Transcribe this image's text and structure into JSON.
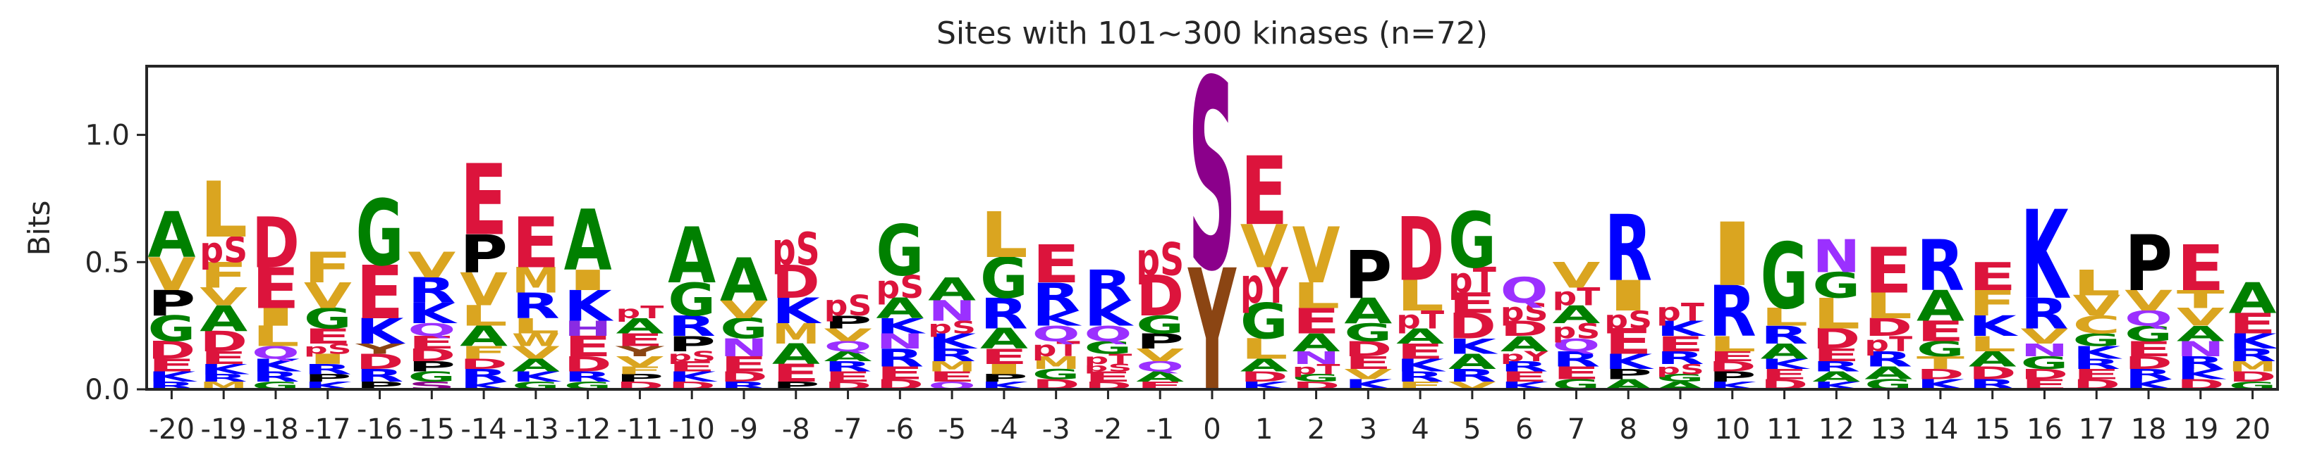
{
  "chart_data": {
    "type": "logo",
    "title": "Sites with 101~300 kinases (n=72)",
    "ylabel": "Bits",
    "categories": [
      -20,
      -19,
      -18,
      -17,
      -16,
      -15,
      -14,
      -13,
      -12,
      -11,
      -10,
      -9,
      -8,
      -7,
      -6,
      -5,
      -4,
      -3,
      -2,
      -1,
      0,
      1,
      2,
      3,
      4,
      5,
      6,
      7,
      8,
      9,
      10,
      11,
      12,
      13,
      14,
      15,
      16,
      17,
      18,
      19,
      20
    ],
    "stacks": [
      {
        "letters": [
          "A",
          "V",
          "P",
          "G",
          "D",
          "E",
          "K",
          "R"
        ],
        "values": [
          0.18,
          0.13,
          0.1,
          0.1,
          0.07,
          0.05,
          0.04,
          0.03
        ]
      },
      {
        "letters": [
          "L",
          "pS",
          "F",
          "V",
          "A",
          "D",
          "E",
          "K",
          "R",
          "M"
        ],
        "values": [
          0.22,
          0.1,
          0.1,
          0.07,
          0.1,
          0.08,
          0.05,
          0.04,
          0.03,
          0.03
        ]
      },
      {
        "letters": [
          "D",
          "E",
          "I",
          "L",
          "Q",
          "K",
          "R",
          "G"
        ],
        "values": [
          0.2,
          0.16,
          0.07,
          0.08,
          0.05,
          0.05,
          0.04,
          0.03
        ]
      },
      {
        "letters": [
          "F",
          "V",
          "G",
          "E",
          "pS",
          "I",
          "R",
          "P",
          "K"
        ],
        "values": [
          0.12,
          0.1,
          0.08,
          0.06,
          0.04,
          0.04,
          0.04,
          0.03,
          0.03
        ]
      },
      {
        "letters": [
          "G",
          "E",
          "K",
          "Y",
          "D",
          "R",
          "P"
        ],
        "values": [
          0.26,
          0.21,
          0.1,
          0.04,
          0.06,
          0.05,
          0.03
        ]
      },
      {
        "letters": [
          "V",
          "R",
          "K",
          "Q",
          "E",
          "D",
          "P",
          "G",
          "S"
        ],
        "values": [
          0.1,
          0.1,
          0.08,
          0.05,
          0.05,
          0.05,
          0.04,
          0.04,
          0.03
        ]
      },
      {
        "letters": [
          "E",
          "P",
          "V",
          "L",
          "A",
          "F",
          "D",
          "R",
          "K"
        ],
        "values": [
          0.28,
          0.15,
          0.13,
          0.08,
          0.08,
          0.05,
          0.04,
          0.05,
          0.03
        ]
      },
      {
        "letters": [
          "E",
          "M",
          "R",
          "L",
          "W",
          "V",
          "A",
          "K",
          "G"
        ],
        "values": [
          0.2,
          0.1,
          0.1,
          0.06,
          0.05,
          0.05,
          0.05,
          0.04,
          0.03
        ]
      },
      {
        "letters": [
          "A",
          "I",
          "K",
          "H",
          "E",
          "D",
          "R",
          "G"
        ],
        "values": [
          0.24,
          0.08,
          0.12,
          0.06,
          0.08,
          0.06,
          0.04,
          0.03
        ]
      },
      {
        "letters": [
          "pT",
          "A",
          "E",
          "Y",
          "V",
          "F",
          "P",
          "D"
        ],
        "values": [
          0.05,
          0.06,
          0.05,
          0.04,
          0.04,
          0.03,
          0.03,
          0.03
        ]
      },
      {
        "letters": [
          "A",
          "G",
          "R",
          "P",
          "pS",
          "E",
          "K",
          "D"
        ],
        "values": [
          0.22,
          0.13,
          0.08,
          0.06,
          0.04,
          0.04,
          0.04,
          0.03
        ]
      },
      {
        "letters": [
          "A",
          "V",
          "G",
          "N",
          "E",
          "D",
          "R"
        ],
        "values": [
          0.17,
          0.07,
          0.08,
          0.07,
          0.06,
          0.04,
          0.03
        ]
      },
      {
        "letters": [
          "pS",
          "D",
          "K",
          "M",
          "A",
          "E",
          "P"
        ],
        "values": [
          0.13,
          0.13,
          0.1,
          0.08,
          0.08,
          0.07,
          0.03
        ]
      },
      {
        "letters": [
          "pS",
          "P",
          "V",
          "Q",
          "A",
          "R",
          "E",
          "D"
        ],
        "values": [
          0.08,
          0.05,
          0.05,
          0.04,
          0.04,
          0.04,
          0.04,
          0.03
        ]
      },
      {
        "letters": [
          "G",
          "pS",
          "A",
          "K",
          "N",
          "R",
          "E",
          "D"
        ],
        "values": [
          0.2,
          0.09,
          0.08,
          0.06,
          0.06,
          0.07,
          0.05,
          0.04
        ]
      },
      {
        "letters": [
          "A",
          "N",
          "pS",
          "K",
          "R",
          "M",
          "E",
          "Q"
        ],
        "values": [
          0.09,
          0.08,
          0.05,
          0.06,
          0.05,
          0.04,
          0.04,
          0.03
        ]
      },
      {
        "letters": [
          "L",
          "G",
          "R",
          "A",
          "E",
          "I",
          "P",
          "K"
        ],
        "values": [
          0.18,
          0.16,
          0.12,
          0.08,
          0.06,
          0.04,
          0.03,
          0.03
        ]
      },
      {
        "letters": [
          "E",
          "R",
          "K",
          "Q",
          "pT",
          "M",
          "G",
          "D"
        ],
        "values": [
          0.15,
          0.11,
          0.06,
          0.06,
          0.06,
          0.05,
          0.04,
          0.04
        ]
      },
      {
        "letters": [
          "R",
          "K",
          "Q",
          "G",
          "pT",
          "pS",
          "E",
          "D"
        ],
        "values": [
          0.12,
          0.1,
          0.06,
          0.05,
          0.04,
          0.03,
          0.04,
          0.03
        ]
      },
      {
        "letters": [
          "pS",
          "D",
          "G",
          "P",
          "V",
          "Q",
          "A",
          "E"
        ],
        "values": [
          0.13,
          0.16,
          0.07,
          0.06,
          0.05,
          0.04,
          0.04,
          0.03
        ]
      },
      {
        "letters": [
          "S",
          "Y"
        ],
        "values": [
          0.75,
          0.48
        ]
      },
      {
        "letters": [
          "E",
          "V",
          "pY",
          "G",
          "L",
          "A",
          "D",
          "K"
        ],
        "values": [
          0.27,
          0.17,
          0.14,
          0.14,
          0.08,
          0.05,
          0.04,
          0.03
        ]
      },
      {
        "letters": [
          "V",
          "L",
          "E",
          "A",
          "N",
          "pT",
          "G",
          "D"
        ],
        "values": [
          0.22,
          0.1,
          0.1,
          0.07,
          0.05,
          0.04,
          0.03,
          0.03
        ]
      },
      {
        "letters": [
          "P",
          "A",
          "G",
          "D",
          "E",
          "V",
          "K"
        ],
        "values": [
          0.19,
          0.1,
          0.07,
          0.06,
          0.05,
          0.04,
          0.04
        ]
      },
      {
        "letters": [
          "D",
          "L",
          "pT",
          "A",
          "E",
          "K",
          "R",
          "F"
        ],
        "values": [
          0.25,
          0.12,
          0.07,
          0.06,
          0.06,
          0.05,
          0.04,
          0.03
        ]
      },
      {
        "letters": [
          "G",
          "pT",
          "E",
          "D",
          "K",
          "A",
          "R",
          "V"
        ],
        "values": [
          0.22,
          0.1,
          0.08,
          0.1,
          0.06,
          0.06,
          0.05,
          0.03
        ]
      },
      {
        "letters": [
          "Q",
          "pS",
          "D",
          "A",
          "pY",
          "R",
          "E",
          "K"
        ],
        "values": [
          0.1,
          0.07,
          0.06,
          0.06,
          0.04,
          0.04,
          0.04,
          0.03
        ]
      },
      {
        "letters": [
          "V",
          "pT",
          "A",
          "pS",
          "Q",
          "R",
          "E",
          "G"
        ],
        "values": [
          0.1,
          0.07,
          0.07,
          0.06,
          0.05,
          0.06,
          0.05,
          0.04
        ]
      },
      {
        "letters": [
          "R",
          "I",
          "pS",
          "E",
          "K",
          "P",
          "A"
        ],
        "values": [
          0.26,
          0.12,
          0.07,
          0.1,
          0.06,
          0.04,
          0.04
        ]
      },
      {
        "letters": [
          "pT",
          "K",
          "E",
          "R",
          "pS",
          "G",
          "A"
        ],
        "values": [
          0.07,
          0.06,
          0.06,
          0.05,
          0.04,
          0.03,
          0.03
        ]
      },
      {
        "letters": [
          "I",
          "R",
          "L",
          "E",
          "D",
          "P",
          "K"
        ],
        "values": [
          0.25,
          0.2,
          0.06,
          0.04,
          0.04,
          0.04,
          0.03
        ]
      },
      {
        "letters": [
          "G",
          "L",
          "R",
          "A",
          "K",
          "E",
          "D"
        ],
        "values": [
          0.26,
          0.07,
          0.07,
          0.06,
          0.04,
          0.04,
          0.04
        ]
      },
      {
        "letters": [
          "N",
          "G",
          "L",
          "D",
          "E",
          "R",
          "A",
          "K"
        ],
        "values": [
          0.13,
          0.1,
          0.12,
          0.08,
          0.05,
          0.04,
          0.04,
          0.03
        ]
      },
      {
        "letters": [
          "E",
          "L",
          "D",
          "pT",
          "R",
          "A",
          "G"
        ],
        "values": [
          0.18,
          0.1,
          0.07,
          0.06,
          0.06,
          0.05,
          0.04
        ]
      },
      {
        "letters": [
          "R",
          "A",
          "E",
          "G",
          "T",
          "D",
          "K"
        ],
        "values": [
          0.2,
          0.12,
          0.08,
          0.06,
          0.05,
          0.04,
          0.04
        ]
      },
      {
        "letters": [
          "E",
          "F",
          "K",
          "L",
          "A",
          "D",
          "R"
        ],
        "values": [
          0.11,
          0.1,
          0.08,
          0.06,
          0.06,
          0.05,
          0.04
        ]
      },
      {
        "letters": [
          "K",
          "R",
          "V",
          "N",
          "G",
          "D",
          "E"
        ],
        "values": [
          0.35,
          0.12,
          0.06,
          0.05,
          0.05,
          0.04,
          0.04
        ]
      },
      {
        "letters": [
          "L",
          "V",
          "C",
          "G",
          "K",
          "R",
          "E",
          "D"
        ],
        "values": [
          0.1,
          0.08,
          0.07,
          0.05,
          0.05,
          0.04,
          0.04,
          0.04
        ]
      },
      {
        "letters": [
          "P",
          "V",
          "Q",
          "G",
          "E",
          "D",
          "R",
          "K"
        ],
        "values": [
          0.22,
          0.08,
          0.06,
          0.06,
          0.06,
          0.05,
          0.04,
          0.04
        ]
      },
      {
        "letters": [
          "E",
          "T",
          "V",
          "A",
          "N",
          "R",
          "K",
          "D"
        ],
        "values": [
          0.18,
          0.07,
          0.07,
          0.06,
          0.06,
          0.05,
          0.04,
          0.04
        ]
      },
      {
        "letters": [
          "A",
          "E",
          "K",
          "R",
          "M",
          "D",
          "G"
        ],
        "values": [
          0.12,
          0.08,
          0.06,
          0.05,
          0.04,
          0.04,
          0.03
        ]
      }
    ],
    "colors": {
      "A": "#008000",
      "G": "#008000",
      "V": "#daa520",
      "L": "#daa520",
      "I": "#daa520",
      "F": "#daa520",
      "M": "#daa520",
      "W": "#daa520",
      "T": "#daa520",
      "C": "#daa520",
      "P": "#000000",
      "D": "#dc143c",
      "E": "#dc143c",
      "pS": "#dc143c",
      "pT": "#dc143c",
      "pY": "#dc143c",
      "K": "#0000ff",
      "R": "#0000ff",
      "H": "#8a2be2",
      "Q": "#9b30ff",
      "N": "#9b30ff",
      "S": "#8b008b",
      "Y": "#8b4513"
    },
    "ylim": [
      0,
      1.27
    ],
    "yticks": [
      {
        "value": 0,
        "label": "0.0"
      },
      {
        "value": 0.5,
        "label": "0.5"
      },
      {
        "value": 1,
        "label": "1.0"
      }
    ]
  }
}
